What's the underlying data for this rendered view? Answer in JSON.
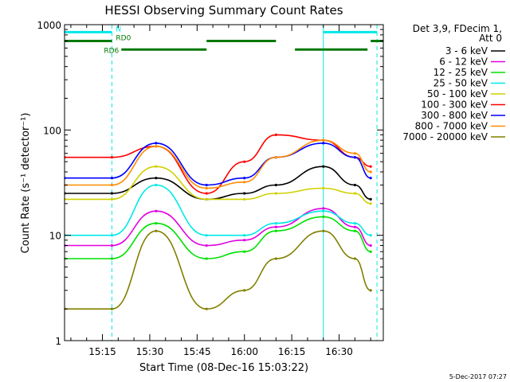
{
  "chart_data": {
    "type": "line",
    "title": "HESSI Observing Summary Count Rates",
    "xlabel": "Start Time (08-Dec-16 15:03:22)",
    "ylabel": "Count Rate (s⁻¹ detector⁻¹)",
    "yscale": "log",
    "ylim": [
      1,
      1000
    ],
    "xlim": [
      "15:03",
      "16:44"
    ],
    "x_ticks": [
      "15:15",
      "15:30",
      "15:45",
      "16:00",
      "16:15",
      "16:30"
    ],
    "y_ticks": [
      "1",
      "10",
      "100",
      "1000"
    ],
    "legend": {
      "placement": "right",
      "title_line1": "Det 3,9, FDecim 1,",
      "title_line2": "Att 0"
    },
    "series": [
      {
        "name": "3 - 6 keV",
        "color": "#000000",
        "x": [
          "15:03",
          "15:18",
          "15:32",
          "15:48",
          "16:00",
          "16:10",
          "16:25",
          "16:35",
          "16:40"
        ],
        "values": [
          25,
          25,
          35,
          22,
          25,
          30,
          45,
          30,
          22
        ]
      },
      {
        "name": "6 - 12 keV",
        "color": "#e000e0",
        "x": [
          "15:03",
          "15:18",
          "15:32",
          "15:48",
          "16:00",
          "16:10",
          "16:25",
          "16:35",
          "16:40"
        ],
        "values": [
          8,
          8,
          17,
          8,
          9,
          12,
          18,
          12,
          8
        ]
      },
      {
        "name": "12 - 25 keV",
        "color": "#00e000",
        "x": [
          "15:03",
          "15:18",
          "15:32",
          "15:48",
          "16:00",
          "16:10",
          "16:25",
          "16:35",
          "16:40"
        ],
        "values": [
          6,
          6,
          13,
          6,
          7,
          11,
          15,
          11,
          7
        ]
      },
      {
        "name": "25 - 50 keV",
        "color": "#00e8e8",
        "x": [
          "15:03",
          "15:18",
          "15:32",
          "15:48",
          "16:00",
          "16:10",
          "16:25",
          "16:35",
          "16:40"
        ],
        "values": [
          10,
          10,
          30,
          10,
          10,
          13,
          17,
          13,
          10
        ]
      },
      {
        "name": "50 - 100 keV",
        "color": "#d0d000",
        "x": [
          "15:03",
          "15:18",
          "15:32",
          "15:48",
          "16:00",
          "16:10",
          "16:25",
          "16:35",
          "16:40"
        ],
        "values": [
          22,
          22,
          45,
          22,
          22,
          25,
          28,
          25,
          20
        ]
      },
      {
        "name": "100 - 300 keV",
        "color": "#ff0000",
        "x": [
          "15:03",
          "15:18",
          "15:32",
          "15:48",
          "16:00",
          "16:10",
          "16:25",
          "16:35",
          "16:40"
        ],
        "values": [
          55,
          55,
          70,
          25,
          50,
          90,
          80,
          55,
          45
        ]
      },
      {
        "name": "300 - 800 keV",
        "color": "#0000ff",
        "x": [
          "15:03",
          "15:18",
          "15:32",
          "15:48",
          "16:00",
          "16:10",
          "16:25",
          "16:35",
          "16:40"
        ],
        "values": [
          35,
          35,
          75,
          30,
          35,
          55,
          75,
          55,
          35
        ]
      },
      {
        "name": "800 - 7000 keV",
        "color": "#ff8c00",
        "x": [
          "15:03",
          "15:18",
          "15:32",
          "15:48",
          "16:00",
          "16:10",
          "16:25",
          "16:35",
          "16:40"
        ],
        "values": [
          30,
          30,
          70,
          28,
          32,
          55,
          80,
          60,
          40
        ]
      },
      {
        "name": "7000 - 20000 keV",
        "color": "#808000",
        "x": [
          "15:03",
          "15:18",
          "15:32",
          "15:48",
          "16:00",
          "16:10",
          "16:25",
          "16:35",
          "16:40"
        ],
        "values": [
          2,
          2,
          11,
          2,
          3,
          6,
          11,
          6,
          3
        ]
      }
    ],
    "flag_bars": [
      {
        "label": "N",
        "color": "#00e8e8",
        "y": 850,
        "segments": [
          [
            "15:03",
            "15:18"
          ],
          [
            "16:25",
            "16:42"
          ]
        ]
      },
      {
        "label": "RD0",
        "color": "#007800",
        "y": 700,
        "segments": [
          [
            "15:03",
            "15:18"
          ],
          [
            "15:48",
            "16:10"
          ],
          [
            "16:40",
            "16:44"
          ]
        ]
      },
      {
        "label": "RD6",
        "color": "#007800",
        "y": 580,
        "segments": [
          [
            "15:21",
            "15:48"
          ],
          [
            "16:16",
            "16:39"
          ]
        ]
      }
    ],
    "vertical_lines": [
      {
        "x": "15:03",
        "color": "#00e8e8",
        "style": "solid"
      },
      {
        "x": "15:18",
        "color": "#00e8e8",
        "style": "dashed"
      },
      {
        "x": "16:25",
        "color": "#00e8e8",
        "style": "solid"
      },
      {
        "x": "16:42",
        "color": "#00e8e8",
        "style": "dashed"
      }
    ]
  },
  "footer": {
    "timestamp": "5-Dec-2017 07:27"
  }
}
